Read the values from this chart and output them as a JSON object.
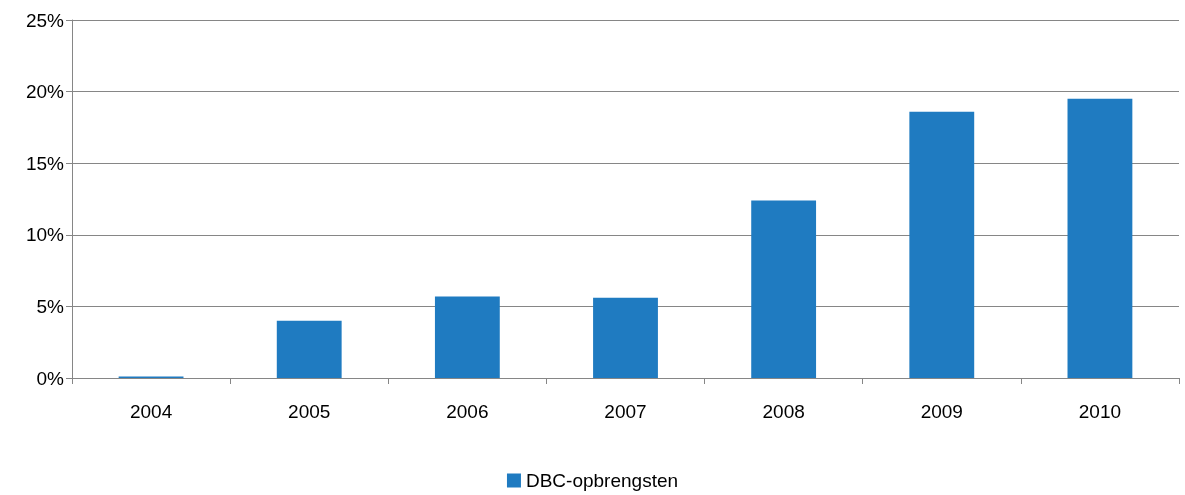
{
  "chart_data": {
    "type": "bar",
    "categories": [
      "2004",
      "2005",
      "2006",
      "2007",
      "2008",
      "2009",
      "2010"
    ],
    "series": [
      {
        "name": "DBC-opbrengsten",
        "color": "#1f7bc1",
        "values": [
          0.1,
          4.0,
          5.7,
          5.6,
          12.4,
          18.6,
          19.5
        ]
      }
    ],
    "ylim": [
      0,
      25
    ],
    "yticks": [
      {
        "value": 0,
        "label": "0%"
      },
      {
        "value": 5,
        "label": "5%"
      },
      {
        "value": 10,
        "label": "10%"
      },
      {
        "value": 15,
        "label": "15%"
      },
      {
        "value": 20,
        "label": "20%"
      },
      {
        "value": 25,
        "label": "25%"
      }
    ],
    "grid": "y",
    "legend": "bottom"
  }
}
